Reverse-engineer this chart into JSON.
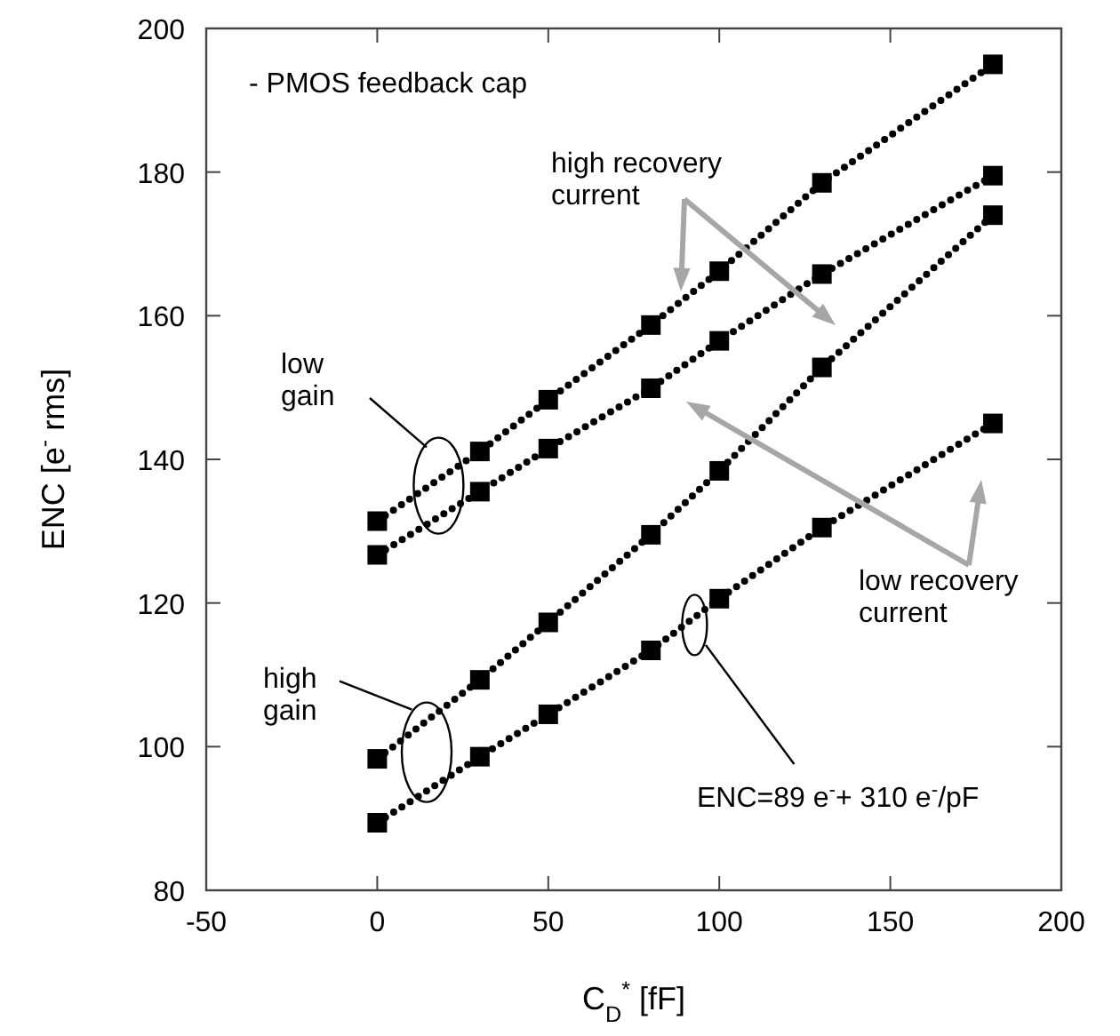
{
  "chart_data": {
    "type": "line",
    "xlabel": "C$_{D}$$^{*}$ [fF]",
    "ylabel": "ENC [e$^{-}$ rms]",
    "xlim": [
      -50,
      200
    ],
    "xticks": [
      -50,
      0,
      50,
      100,
      150,
      200
    ],
    "ylim": [
      80,
      200
    ],
    "yticks": [
      80,
      100,
      120,
      140,
      160,
      180,
      200
    ],
    "x": [
      0,
      30,
      50,
      80,
      100,
      130,
      180
    ],
    "marker": "square",
    "line_style": "dotted",
    "series": [
      {
        "color": "#000000",
        "values": [
          131.4,
          141.1,
          148.3,
          158.7,
          166.2,
          178.5,
          195
        ]
      },
      {
        "color": "#000000",
        "values": [
          126.7,
          135.5,
          141.5,
          149.9,
          156.5,
          165.8,
          179.5
        ]
      },
      {
        "color": "#000000",
        "values": [
          98.3,
          109.3,
          117.3,
          129.5,
          138.4,
          152.8,
          174
        ]
      },
      {
        "color": "#000000",
        "values": [
          89.4,
          98.6,
          104.5,
          113.4,
          120.6,
          130.5,
          145
        ]
      }
    ],
    "annotations": [
      "- PMOS feedback cap",
      "high recovery current",
      "low recovery current",
      "low gain",
      "high gain",
      "ENC=89 e$^{-}$+ 310 e$^{-}$/pF"
    ]
  }
}
